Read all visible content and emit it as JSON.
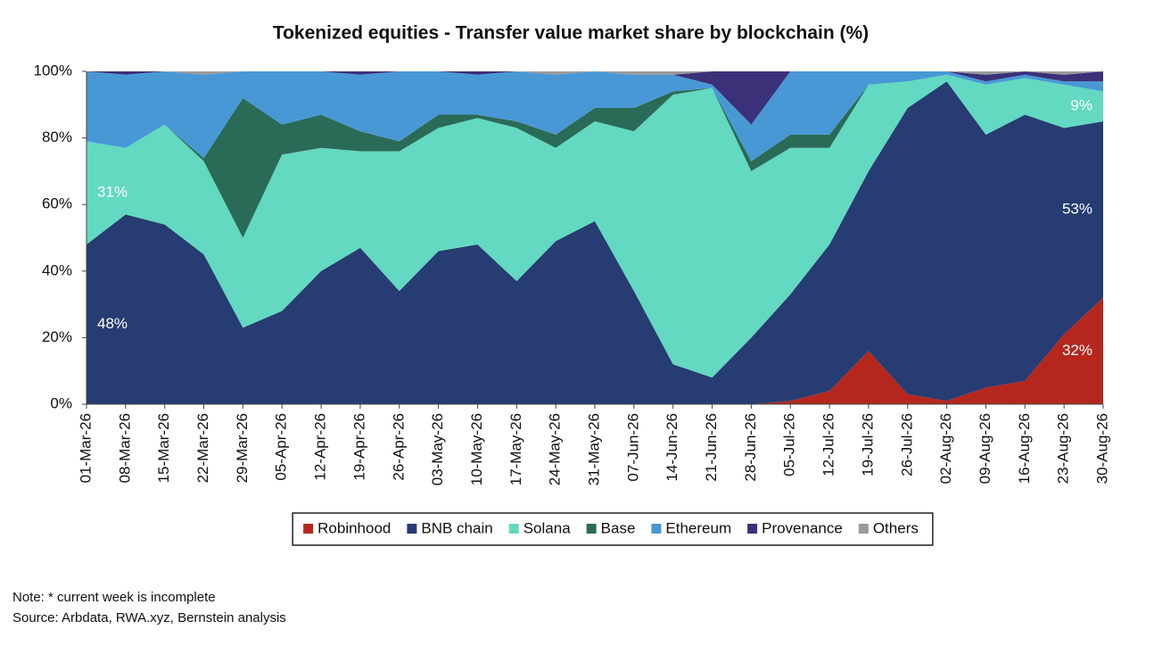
{
  "chart_data": {
    "type": "stacked_area",
    "title": "Tokenized equities - Transfer value market share by blockchain (%)",
    "categories": [
      "01-Mar-26",
      "08-Mar-26",
      "15-Mar-26",
      "22-Mar-26",
      "29-Mar-26",
      "05-Apr-26",
      "12-Apr-26",
      "19-Apr-26",
      "26-Apr-26",
      "03-May-26",
      "10-May-26",
      "17-May-26",
      "24-May-26",
      "31-May-26",
      "07-Jun-26",
      "14-Jun-26",
      "21-Jun-26",
      "28-Jun-26",
      "05-Jul-26",
      "12-Jul-26",
      "19-Jul-26",
      "26-Jul-26",
      "02-Aug-26",
      "09-Aug-26",
      "16-Aug-26",
      "23-Aug-26",
      "30-Aug-26"
    ],
    "series": [
      {
        "name": "Robinhood",
        "color": "#b5271d",
        "values": [
          0,
          0,
          0,
          0,
          0,
          0,
          0,
          0,
          0,
          0,
          0,
          0,
          0,
          0,
          0,
          0,
          0,
          0,
          1,
          4,
          16,
          3,
          1,
          5,
          7,
          21,
          32
        ],
        "value_labels": [
          null,
          null,
          null,
          null,
          null,
          null,
          null,
          null,
          null,
          null,
          null,
          null,
          null,
          null,
          null,
          null,
          null,
          null,
          null,
          null,
          null,
          null,
          null,
          null,
          null,
          null,
          "32%"
        ]
      },
      {
        "name": "BNB chain",
        "color": "#263c72",
        "values": [
          48,
          57,
          54,
          45,
          23,
          28,
          40,
          47,
          34,
          46,
          48,
          37,
          49,
          55,
          34,
          12,
          8,
          20,
          32,
          44,
          54,
          86,
          96,
          76,
          80,
          62,
          53
        ],
        "value_labels": [
          "48%",
          null,
          null,
          null,
          null,
          null,
          null,
          null,
          null,
          null,
          null,
          null,
          null,
          null,
          null,
          null,
          null,
          null,
          null,
          null,
          null,
          null,
          null,
          null,
          null,
          null,
          "53%"
        ]
      },
      {
        "name": "Solana",
        "color": "#62d9c0",
        "values": [
          31,
          20,
          30,
          28,
          27,
          47,
          37,
          29,
          42,
          37,
          38,
          46,
          28,
          30,
          48,
          81,
          87,
          50,
          44,
          29,
          26,
          8,
          2,
          15,
          11,
          13,
          9
        ],
        "value_labels": [
          "31%",
          null,
          null,
          null,
          null,
          null,
          null,
          null,
          null,
          null,
          null,
          null,
          null,
          null,
          null,
          null,
          null,
          null,
          null,
          null,
          null,
          null,
          null,
          null,
          null,
          null,
          "9%"
        ]
      },
      {
        "name": "Base",
        "color": "#2a6b57",
        "values": [
          0,
          0,
          0,
          1,
          42,
          9,
          10,
          6,
          3,
          4,
          1,
          2,
          4,
          4,
          7,
          1,
          0,
          3,
          4,
          4,
          0,
          0,
          0,
          0,
          0,
          0,
          0
        ]
      },
      {
        "name": "Ethereum",
        "color": "#4898d6",
        "values": [
          21,
          22,
          16,
          25,
          8,
          16,
          13,
          17,
          21,
          13,
          12,
          15,
          18,
          11,
          10,
          5,
          1,
          11,
          19,
          19,
          4,
          3,
          1,
          1,
          1,
          1,
          3
        ]
      },
      {
        "name": "Provenance",
        "color": "#3b3179",
        "values": [
          0,
          1,
          0,
          0,
          0,
          0,
          0,
          1,
          0,
          0,
          1,
          0,
          0,
          0,
          0,
          0,
          4,
          16,
          0,
          0,
          0,
          0,
          0,
          2,
          1,
          2,
          3
        ]
      },
      {
        "name": "Others",
        "color": "#9a9a9a",
        "values": [
          0,
          0,
          0,
          1,
          0,
          0,
          0,
          0,
          0,
          0,
          0,
          0,
          1,
          0,
          1,
          1,
          0,
          0,
          0,
          0,
          0,
          0,
          0,
          1,
          0,
          1,
          0
        ]
      }
    ],
    "ylim": [
      0,
      100
    ],
    "yticks": [
      {
        "value": 0,
        "label": "0%"
      },
      {
        "value": 20,
        "label": "20%"
      },
      {
        "value": 40,
        "label": "40%"
      },
      {
        "value": 60,
        "label": "60%"
      },
      {
        "value": 80,
        "label": "80%"
      },
      {
        "value": 100,
        "label": "100%"
      }
    ],
    "legend": "bottom",
    "note": "Note: * current week is incomplete",
    "source": "Source: Arbdata, RWA.xyz, Bernstein analysis"
  }
}
